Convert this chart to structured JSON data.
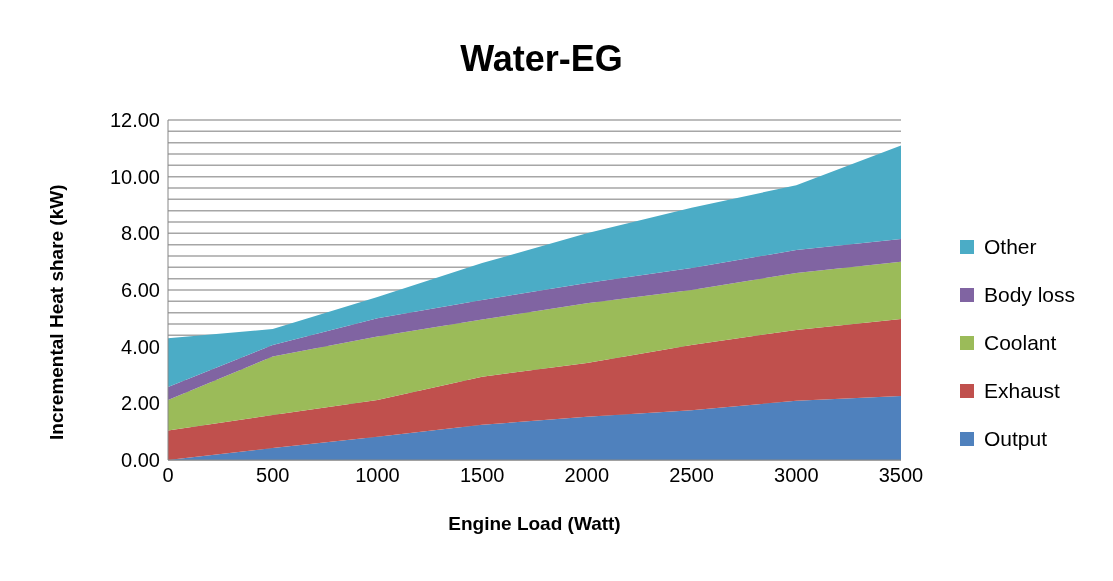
{
  "chart_data": {
    "type": "area",
    "title": "Water-EG",
    "xlabel": "Engine Load (Watt)",
    "ylabel": "Incremental Heat share (kW)",
    "stacked": true,
    "legend": "right",
    "grid": "y",
    "x": [
      0,
      500,
      1000,
      1500,
      2000,
      2500,
      3000,
      3500
    ],
    "xlim": [
      0,
      3500
    ],
    "xticks": [
      0,
      500,
      1000,
      1500,
      2000,
      2500,
      3000,
      3500
    ],
    "ylim": [
      0,
      12
    ],
    "yticks": [
      {
        "value": 0,
        "label": "0.00"
      },
      {
        "value": 0.4,
        "label": null
      },
      {
        "value": 0.8,
        "label": null
      },
      {
        "value": 1.2,
        "label": null
      },
      {
        "value": 1.6,
        "label": null
      },
      {
        "value": 2,
        "label": "2.00"
      },
      {
        "value": 2.4,
        "label": null
      },
      {
        "value": 2.8,
        "label": null
      },
      {
        "value": 3.2,
        "label": null
      },
      {
        "value": 3.6,
        "label": null
      },
      {
        "value": 4,
        "label": "4.00"
      },
      {
        "value": 4.4,
        "label": null
      },
      {
        "value": 4.8,
        "label": null
      },
      {
        "value": 5.2,
        "label": null
      },
      {
        "value": 5.6,
        "label": null
      },
      {
        "value": 6,
        "label": "6.00"
      },
      {
        "value": 6.4,
        "label": null
      },
      {
        "value": 6.8,
        "label": null
      },
      {
        "value": 7.2,
        "label": null
      },
      {
        "value": 7.6,
        "label": null
      },
      {
        "value": 8,
        "label": "8.00"
      },
      {
        "value": 8.4,
        "label": null
      },
      {
        "value": 8.8,
        "label": null
      },
      {
        "value": 9.2,
        "label": null
      },
      {
        "value": 9.6,
        "label": null
      },
      {
        "value": 10,
        "label": "10.00"
      },
      {
        "value": 10.4,
        "label": null
      },
      {
        "value": 10.8,
        "label": null
      },
      {
        "value": 11.2,
        "label": null
      },
      {
        "value": 11.6,
        "label": null
      },
      {
        "value": 12,
        "label": "12.00"
      }
    ],
    "series": [
      {
        "name": "Output",
        "color": "#4f81bd",
        "values": [
          0,
          0.42,
          0.82,
          1.24,
          1.53,
          1.76,
          2.09,
          2.26
        ]
      },
      {
        "name": "Exhaust",
        "color": "#c0504d",
        "values": [
          1.04,
          1.17,
          1.3,
          1.7,
          1.89,
          2.3,
          2.5,
          2.72
        ]
      },
      {
        "name": "Coolant",
        "color": "#9bbb59",
        "values": [
          1.08,
          2.06,
          2.24,
          2.02,
          2.11,
          1.94,
          2.01,
          2.02
        ]
      },
      {
        "name": "Body loss",
        "color": "#8064a2",
        "values": [
          0.46,
          0.41,
          0.64,
          0.69,
          0.72,
          0.78,
          0.81,
          0.8
        ]
      },
      {
        "name": "Other",
        "color": "#4bacc6",
        "values": [
          1.72,
          0.56,
          0.75,
          1.3,
          1.75,
          2.12,
          2.29,
          3.3
        ]
      }
    ]
  }
}
